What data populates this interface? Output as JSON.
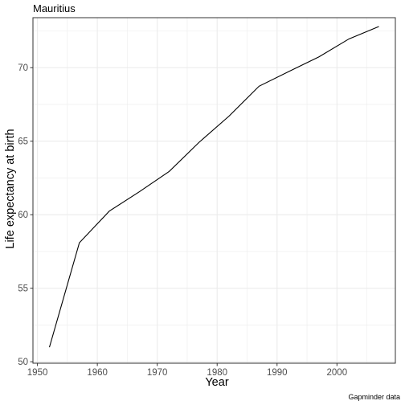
{
  "chart_data": {
    "type": "line",
    "title": "Mauritius",
    "xlabel": "Year",
    "ylabel": "Life expectancy at birth",
    "caption": "Gapminder data",
    "xlim": [
      1949.25,
      2009.75
    ],
    "ylim": [
      49.9,
      73.4
    ],
    "x_ticks": [
      1950,
      1960,
      1970,
      1980,
      1990,
      2000
    ],
    "y_ticks": [
      50,
      55,
      60,
      65,
      70
    ],
    "x_tick_labels": [
      "1950",
      "1960",
      "1970",
      "1980",
      "1990",
      "2000"
    ],
    "y_tick_labels": [
      "50",
      "55",
      "60",
      "65",
      "70"
    ],
    "grid": true,
    "series": [
      {
        "x": [
          1952,
          1957,
          1962,
          1967,
          1972,
          1977,
          1982,
          1987,
          1992,
          1997,
          2002,
          2007
        ],
        "y": [
          50.986,
          58.089,
          60.246,
          61.557,
          62.944,
          64.93,
          66.711,
          68.74,
          69.745,
          70.736,
          71.954,
          72.801
        ]
      }
    ],
    "colors": {
      "line": "#000000",
      "grid": "#ebebeb",
      "panel_border": "#333333"
    }
  }
}
